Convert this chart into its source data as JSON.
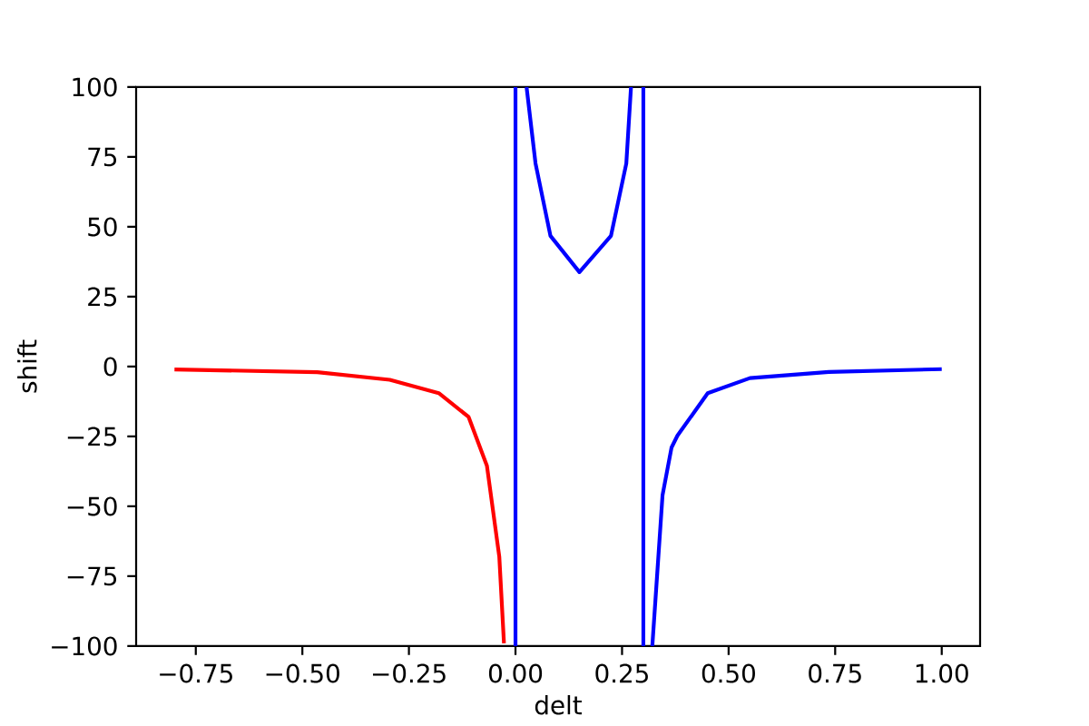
{
  "chart_data": {
    "type": "line",
    "xlabel": "delt",
    "ylabel": "shift",
    "xlim": [
      -0.89,
      1.09
    ],
    "ylim": [
      -100,
      100
    ],
    "xticks": [
      {
        "value": -0.75,
        "label": "−0.75"
      },
      {
        "value": -0.5,
        "label": "−0.50"
      },
      {
        "value": -0.25,
        "label": "−0.25"
      },
      {
        "value": 0,
        "label": "0.00"
      },
      {
        "value": 0.25,
        "label": "0.25"
      },
      {
        "value": 0.5,
        "label": "0.50"
      },
      {
        "value": 0.75,
        "label": "0.75"
      },
      {
        "value": 1,
        "label": "1.00"
      }
    ],
    "yticks": [
      {
        "value": -100,
        "label": "−100"
      },
      {
        "value": -75,
        "label": "−75"
      },
      {
        "value": -50,
        "label": "−50"
      },
      {
        "value": -25,
        "label": "−25"
      },
      0,
      25,
      50,
      75,
      100
    ],
    "series": [
      {
        "color": "#ff0000",
        "x": [
          -0.8,
          -0.465,
          -0.295,
          -0.18,
          -0.11,
          -0.067,
          -0.038,
          -0.027
        ],
        "values": [
          -1,
          -2,
          -4.7,
          -9.5,
          -18,
          -35.5,
          -68,
          -99
        ]
      },
      {
        "color": "#0000ff",
        "x": [
          0,
          0,
          0.013,
          0.026,
          0.047,
          0.082,
          0.15,
          0.224,
          0.26,
          0.271,
          0.285,
          0.3,
          0.3,
          0.31,
          0.321,
          0.345,
          0.366,
          0.38,
          0.451,
          0.55,
          0.735,
          1.0
        ],
        "values": [
          -100,
          100,
          null,
          100,
          72.7,
          46.8,
          33.8,
          46.8,
          72.7,
          100,
          null,
          100,
          -100,
          null,
          -100,
          -46,
          -29,
          -24.7,
          -9.5,
          -4.1,
          -1.9,
          -0.9
        ]
      }
    ]
  }
}
